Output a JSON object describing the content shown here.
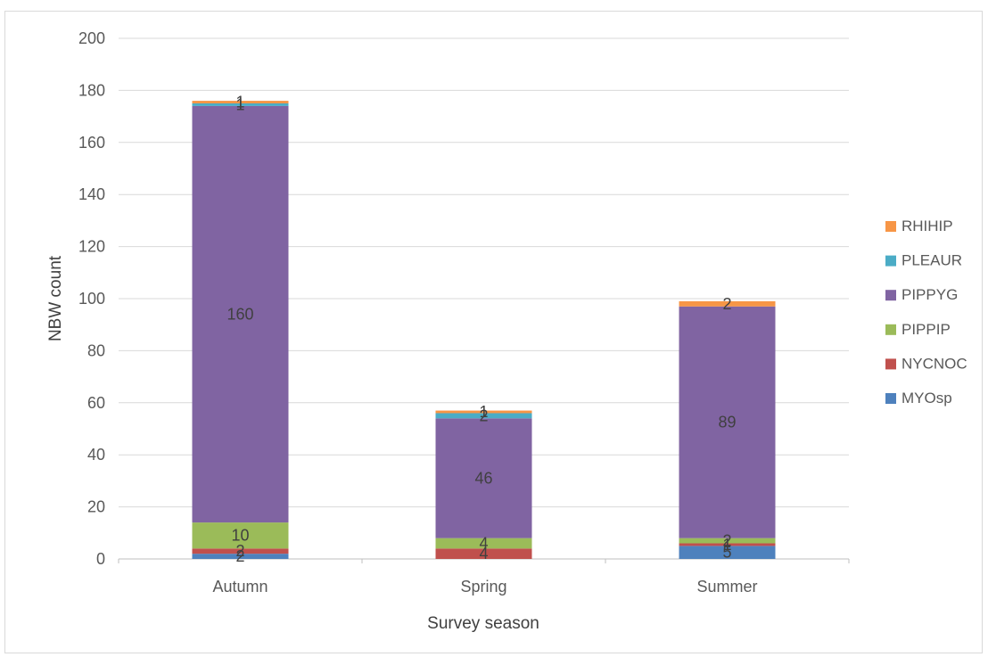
{
  "chart_data": {
    "type": "bar",
    "stacked": true,
    "title": "",
    "xlabel": "Survey season",
    "ylabel": "NBW count",
    "categories": [
      "Autumn",
      "Spring",
      "Summer"
    ],
    "ylim": [
      0,
      200
    ],
    "yticks": [
      0,
      20,
      40,
      60,
      80,
      100,
      120,
      140,
      160,
      180,
      200
    ],
    "grid": true,
    "legend_position": "right",
    "series": [
      {
        "name": "MYOsp",
        "color": "#4e81bd",
        "values": [
          2,
          0,
          5
        ],
        "labels": [
          "2",
          "",
          "5"
        ]
      },
      {
        "name": "NYCNOC",
        "color": "#c0504d",
        "values": [
          2,
          4,
          1
        ],
        "labels": [
          "2",
          "4",
          "1"
        ]
      },
      {
        "name": "PIPPIP",
        "color": "#9bbb59",
        "values": [
          10,
          4,
          2
        ],
        "labels": [
          "10",
          "4",
          "2"
        ]
      },
      {
        "name": "PIPPYG",
        "color": "#8064a2",
        "values": [
          160,
          46,
          89
        ],
        "labels": [
          "160",
          "46",
          "89"
        ]
      },
      {
        "name": "PLEAUR",
        "color": "#4bacc6",
        "values": [
          1,
          2,
          0
        ],
        "labels": [
          "1",
          "2",
          ""
        ]
      },
      {
        "name": "RHIHIP",
        "color": "#f79646",
        "values": [
          1,
          1,
          2
        ],
        "labels": [
          "1",
          "1",
          "2"
        ]
      }
    ]
  }
}
